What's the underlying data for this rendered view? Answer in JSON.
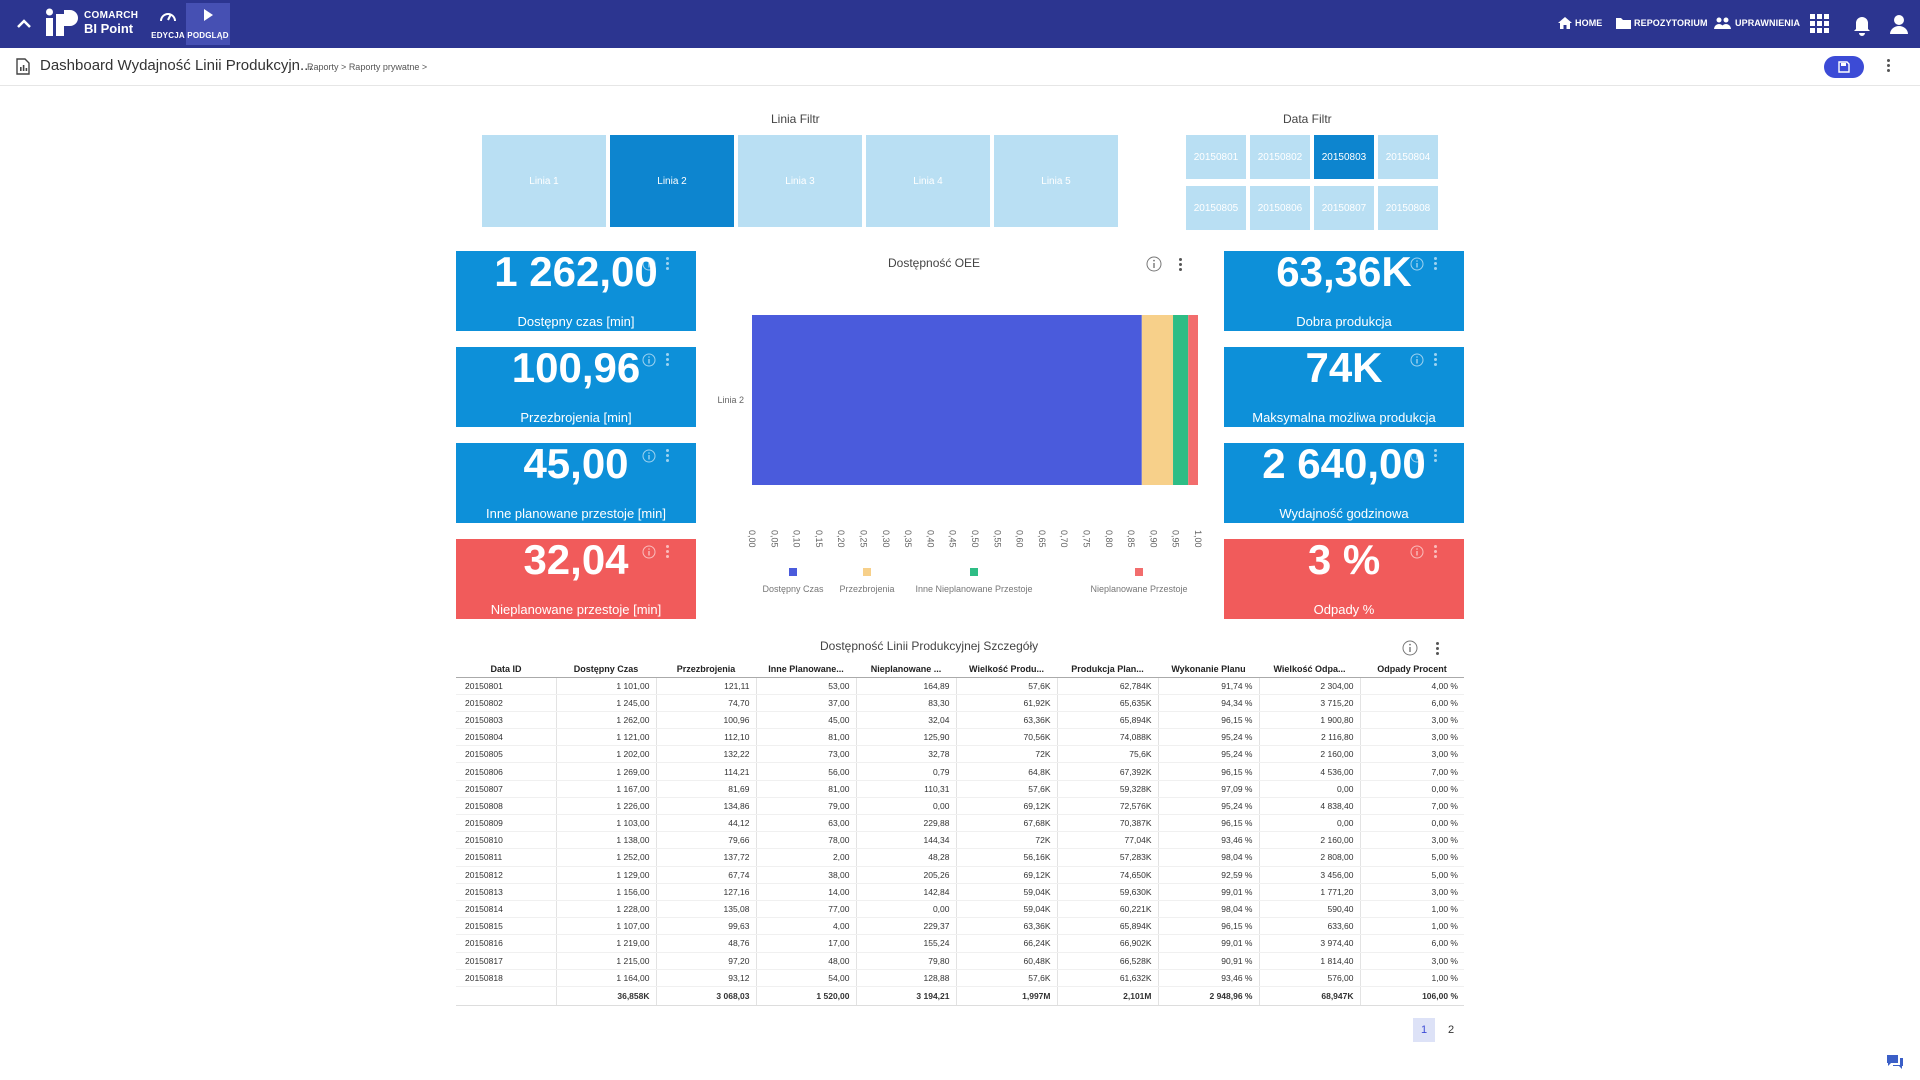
{
  "app": {
    "brand_line1": "COMARCH",
    "brand_line2": "BI Point",
    "accent": "#2c3590"
  },
  "modes": [
    {
      "label": "EDYCJA"
    },
    {
      "label": "PODGLĄD"
    }
  ],
  "nav": {
    "home": "HOME",
    "repo": "REPOZYTORIUM",
    "perms": "UPRAWNIENIA"
  },
  "header": {
    "title": "Dashboard Wydajność Linii Produkcyjn...",
    "crumb1": "Raporty",
    "crumb2": "Raporty prywatne",
    "sep": ">"
  },
  "filters": {
    "line_title": "Linia Filtr",
    "lines": [
      "Linia 1",
      "Linia 2",
      "Linia 3",
      "Linia 4",
      "Linia 5"
    ],
    "line_selected": "Linia 2",
    "date_title": "Data Filtr",
    "dates": [
      "20150801",
      "20150802",
      "20150803",
      "20150804",
      "20150805",
      "20150806",
      "20150807",
      "20150808"
    ],
    "date_selected": "20150803"
  },
  "kpis_left": [
    {
      "value": "1 262,00",
      "label": "Dostępny czas [min]",
      "color": "#0d90d9"
    },
    {
      "value": "100,96",
      "label": "Przezbrojenia [min]",
      "color": "#0d90d9"
    },
    {
      "value": "45,00",
      "label": "Inne planowane przestoje [min]",
      "color": "#0d90d9"
    },
    {
      "value": "32,04",
      "label": "Nieplanowane przestoje [min]",
      "color": "#f15b5b"
    }
  ],
  "kpis_right": [
    {
      "value": "63,36K",
      "label": "Dobra produkcja",
      "color": "#0d90d9"
    },
    {
      "value": "74K",
      "label": "Maksymalna możliwa produkcja",
      "color": "#0d90d9"
    },
    {
      "value": "2 640,00",
      "label": "Wydajność godzinowa",
      "color": "#0d90d9"
    },
    {
      "value": "3 %",
      "label": "Odpady %",
      "color": "#f15b5b"
    }
  ],
  "chart_title": "Dostępność OEE",
  "chart_data": {
    "type": "bar",
    "orientation": "horizontal",
    "stacked": true,
    "percent": true,
    "categories": [
      "Linia 2"
    ],
    "series": [
      {
        "name": "Dostępny Czas",
        "values": [
          0.874
        ],
        "color": "#4a5bdc"
      },
      {
        "name": "Przezbrojenia",
        "values": [
          0.07
        ],
        "color": "#f7d08a"
      },
      {
        "name": "Inne Nieplanowane Przestoje",
        "values": [
          0.034
        ],
        "color": "#2ebd85"
      },
      {
        "name": "Nieplanowane Przestoje",
        "values": [
          0.022
        ],
        "color": "#f26d6d"
      }
    ],
    "xlim": [
      0,
      1
    ],
    "xticks": [
      "0,00",
      "0,05",
      "0,10",
      "0,15",
      "0,20",
      "0,25",
      "0,30",
      "0,35",
      "0,40",
      "0,45",
      "0,50",
      "0,55",
      "0,60",
      "0,65",
      "0,70",
      "0,75",
      "0,80",
      "0,85",
      "0,90",
      "0,95",
      "1,00"
    ],
    "legend": "bottom",
    "grid": false
  },
  "table": {
    "title": "Dostępność Linii Produkcyjnej Szczegóły",
    "columns": [
      "Data ID",
      "Dostępny Czas",
      "Przezbrojenia",
      "Inne Planowane...",
      "Nieplanowane ...",
      "Wielkość Produ...",
      "Produkcja Plan...",
      "Wykonanie Planu",
      "Wielkość Odpa...",
      "Odpady Procent"
    ],
    "rows": [
      [
        "20150801",
        "1 101,00",
        "121,11",
        "53,00",
        "164,89",
        "57,6K",
        "62,784K",
        "91,74 %",
        "2 304,00",
        "4,00 %"
      ],
      [
        "20150802",
        "1 245,00",
        "74,70",
        "37,00",
        "83,30",
        "61,92K",
        "65,635K",
        "94,34 %",
        "3 715,20",
        "6,00 %"
      ],
      [
        "20150803",
        "1 262,00",
        "100,96",
        "45,00",
        "32,04",
        "63,36K",
        "65,894K",
        "96,15 %",
        "1 900,80",
        "3,00 %"
      ],
      [
        "20150804",
        "1 121,00",
        "112,10",
        "81,00",
        "125,90",
        "70,56K",
        "74,088K",
        "95,24 %",
        "2 116,80",
        "3,00 %"
      ],
      [
        "20150805",
        "1 202,00",
        "132,22",
        "73,00",
        "32,78",
        "72K",
        "75,6K",
        "95,24 %",
        "2 160,00",
        "3,00 %"
      ],
      [
        "20150806",
        "1 269,00",
        "114,21",
        "56,00",
        "0,79",
        "64,8K",
        "67,392K",
        "96,15 %",
        "4 536,00",
        "7,00 %"
      ],
      [
        "20150807",
        "1 167,00",
        "81,69",
        "81,00",
        "110,31",
        "57,6K",
        "59,328K",
        "97,09 %",
        "0,00",
        "0,00 %"
      ],
      [
        "20150808",
        "1 226,00",
        "134,86",
        "79,00",
        "0,00",
        "69,12K",
        "72,576K",
        "95,24 %",
        "4 838,40",
        "7,00 %"
      ],
      [
        "20150809",
        "1 103,00",
        "44,12",
        "63,00",
        "229,88",
        "67,68K",
        "70,387K",
        "96,15 %",
        "0,00",
        "0,00 %"
      ],
      [
        "20150810",
        "1 138,00",
        "79,66",
        "78,00",
        "144,34",
        "72K",
        "77,04K",
        "93,46 %",
        "2 160,00",
        "3,00 %"
      ],
      [
        "20150811",
        "1 252,00",
        "137,72",
        "2,00",
        "48,28",
        "56,16K",
        "57,283K",
        "98,04 %",
        "2 808,00",
        "5,00 %"
      ],
      [
        "20150812",
        "1 129,00",
        "67,74",
        "38,00",
        "205,26",
        "69,12K",
        "74,650K",
        "92,59 %",
        "3 456,00",
        "5,00 %"
      ],
      [
        "20150813",
        "1 156,00",
        "127,16",
        "14,00",
        "142,84",
        "59,04K",
        "59,630K",
        "99,01 %",
        "1 771,20",
        "3,00 %"
      ],
      [
        "20150814",
        "1 228,00",
        "135,08",
        "77,00",
        "0,00",
        "59,04K",
        "60,221K",
        "98,04 %",
        "590,40",
        "1,00 %"
      ],
      [
        "20150815",
        "1 107,00",
        "99,63",
        "4,00",
        "229,37",
        "63,36K",
        "65,894K",
        "96,15 %",
        "633,60",
        "1,00 %"
      ],
      [
        "20150816",
        "1 219,00",
        "48,76",
        "17,00",
        "155,24",
        "66,24K",
        "66,902K",
        "99,01 %",
        "3 974,40",
        "6,00 %"
      ],
      [
        "20150817",
        "1 215,00",
        "97,20",
        "48,00",
        "79,80",
        "60,48K",
        "66,528K",
        "90,91 %",
        "1 814,40",
        "3,00 %"
      ],
      [
        "20150818",
        "1 164,00",
        "93,12",
        "54,00",
        "128,88",
        "57,6K",
        "61,632K",
        "93,46 %",
        "576,00",
        "1,00 %"
      ]
    ],
    "totals": [
      "",
      "36,858K",
      "3 068,03",
      "1 520,00",
      "3 194,21",
      "1,997M",
      "2,101M",
      "2 948,96 %",
      "68,947K",
      "106,00 %"
    ]
  },
  "pagination": {
    "page1": "1",
    "page2": "2",
    "current": "1"
  }
}
